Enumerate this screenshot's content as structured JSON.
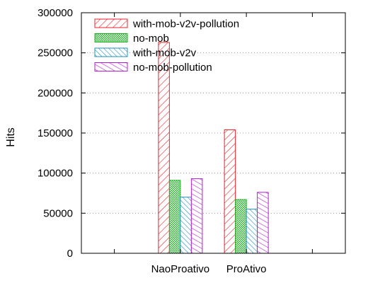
{
  "chart_data": {
    "type": "bar",
    "title": "",
    "xlabel": "",
    "ylabel": "Hits",
    "ylim": [
      0,
      300000
    ],
    "yticks": [
      0,
      50000,
      100000,
      150000,
      200000,
      250000,
      300000
    ],
    "ytick_labels": [
      "0",
      "50000",
      "100000",
      "150000",
      "200000",
      "250000",
      "300000"
    ],
    "categories": [
      "",
      "NaoProativo",
      "ProAtivo",
      ""
    ],
    "grid": "horizontal dotted gridlines at y ticks",
    "legend_position": "top-left",
    "series": [
      {
        "name": "with-mob-v2v-pollution",
        "values": [
          null,
          263000,
          154000,
          null
        ],
        "color": "#e8232b",
        "pattern": "diagonal-right"
      },
      {
        "name": "no-mob",
        "values": [
          null,
          91000,
          67000,
          null
        ],
        "color": "#18b01f",
        "pattern": "crosshatch"
      },
      {
        "name": "with-mob-v2v",
        "values": [
          null,
          70000,
          55000,
          null
        ],
        "color": "#1f8fbf",
        "pattern": "diagonal-left"
      },
      {
        "name": "no-mob-pollution",
        "values": [
          null,
          93000,
          76000,
          null
        ],
        "color": "#b31fcf",
        "pattern": "diagonal-left-dense"
      }
    ]
  }
}
